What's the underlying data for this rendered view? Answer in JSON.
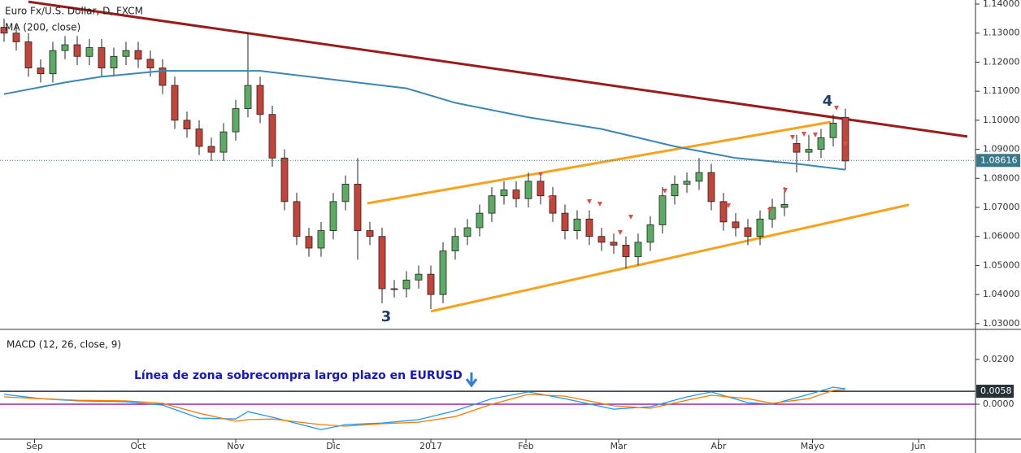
{
  "chart_data": [
    {
      "type": "candlestick",
      "title": "Euro Fx/U.S. Dollar, D, FXCM",
      "open": [
        1.132,
        1.13,
        1.127,
        1.118,
        1.116,
        1.124,
        1.126,
        1.122,
        1.125,
        1.118,
        1.122,
        1.124,
        1.121,
        1.118,
        1.112,
        1.1,
        1.097,
        1.091,
        1.089,
        1.096,
        1.104,
        1.112,
        1.102,
        1.087,
        1.072,
        1.06,
        1.056,
        1.062,
        1.072,
        1.078,
        1.062,
        1.06,
        1.042,
        1.042,
        1.045,
        1.047,
        1.04,
        1.055,
        1.06,
        1.063,
        1.068,
        1.074,
        1.076,
        1.073,
        1.079,
        1.074,
        1.068,
        1.062,
        1.066,
        1.06,
        1.058,
        1.057,
        1.053,
        1.058,
        1.064,
        1.074,
        1.078,
        1.079,
        1.082,
        1.072,
        1.065,
        1.063,
        1.06,
        1.066,
        1.07,
        1.092,
        1.089,
        1.09,
        1.094,
        1.101
      ],
      "high": [
        1.135,
        1.133,
        1.13,
        1.121,
        1.127,
        1.129,
        1.129,
        1.128,
        1.128,
        1.125,
        1.127,
        1.127,
        1.124,
        1.121,
        1.115,
        1.103,
        1.1,
        1.094,
        1.099,
        1.107,
        1.13,
        1.115,
        1.105,
        1.09,
        1.075,
        1.063,
        1.065,
        1.075,
        1.081,
        1.087,
        1.065,
        1.063,
        1.045,
        1.048,
        1.05,
        1.05,
        1.058,
        1.063,
        1.066,
        1.071,
        1.077,
        1.079,
        1.079,
        1.082,
        1.082,
        1.077,
        1.071,
        1.069,
        1.069,
        1.063,
        1.061,
        1.06,
        1.061,
        1.067,
        1.077,
        1.081,
        1.082,
        1.087,
        1.085,
        1.075,
        1.068,
        1.066,
        1.069,
        1.073,
        1.077,
        1.095,
        1.095,
        1.097,
        1.102,
        1.104
      ],
      "low": [
        1.127,
        1.124,
        1.115,
        1.113,
        1.113,
        1.121,
        1.119,
        1.119,
        1.115,
        1.115,
        1.119,
        1.118,
        1.115,
        1.109,
        1.097,
        1.094,
        1.088,
        1.086,
        1.086,
        1.093,
        1.101,
        1.099,
        1.084,
        1.069,
        1.057,
        1.053,
        1.053,
        1.059,
        1.069,
        1.052,
        1.057,
        1.037,
        1.039,
        1.039,
        1.042,
        1.035,
        1.037,
        1.052,
        1.057,
        1.06,
        1.065,
        1.071,
        1.07,
        1.07,
        1.071,
        1.065,
        1.059,
        1.059,
        1.057,
        1.055,
        1.054,
        1.049,
        1.05,
        1.055,
        1.061,
        1.071,
        1.075,
        1.076,
        1.069,
        1.062,
        1.06,
        1.057,
        1.057,
        1.063,
        1.067,
        1.082,
        1.086,
        1.087,
        1.091,
        1.083
      ],
      "close": [
        1.13,
        1.127,
        1.118,
        1.116,
        1.124,
        1.126,
        1.122,
        1.125,
        1.118,
        1.122,
        1.124,
        1.121,
        1.118,
        1.112,
        1.1,
        1.097,
        1.091,
        1.089,
        1.096,
        1.104,
        1.112,
        1.102,
        1.087,
        1.072,
        1.06,
        1.056,
        1.062,
        1.072,
        1.078,
        1.062,
        1.06,
        1.042,
        1.042,
        1.045,
        1.047,
        1.04,
        1.055,
        1.06,
        1.063,
        1.068,
        1.074,
        1.076,
        1.073,
        1.079,
        1.074,
        1.068,
        1.062,
        1.066,
        1.06,
        1.058,
        1.057,
        1.053,
        1.058,
        1.064,
        1.074,
        1.078,
        1.079,
        1.082,
        1.072,
        1.065,
        1.063,
        1.06,
        1.066,
        1.07,
        1.071,
        1.089,
        1.09,
        1.094,
        1.099,
        1.086
      ],
      "up_color": "#5bab62",
      "down_color": "#c4443a",
      "series": [
        {
          "name": "MA (200, close)",
          "color": "#3a87b5",
          "x": [
            0,
            5,
            8,
            13,
            16,
            21,
            27,
            33,
            37,
            43,
            49,
            55,
            60,
            65,
            69
          ],
          "values": [
            1.109,
            1.113,
            1.115,
            1.117,
            1.117,
            1.117,
            1.114,
            1.111,
            1.106,
            1.101,
            1.097,
            1.091,
            1.087,
            1.085,
            1.083
          ]
        }
      ],
      "trendlines": [
        {
          "color": "#9b1b1b",
          "x": [
            2,
            79
          ],
          "values": [
            1.1408,
            1.0944
          ]
        },
        {
          "color": "#f7a21b",
          "x": [
            29.8,
            67.8
          ],
          "values": [
            1.0714,
            1.0994
          ]
        },
        {
          "color": "#f7a21b",
          "x": [
            35,
            74.2
          ],
          "values": [
            1.0342,
            1.0709
          ]
        }
      ],
      "annotations": [
        "3",
        "4"
      ],
      "last_value": 1.08616,
      "xlim": [
        -0.333,
        79.667
      ],
      "ylim": [
        1.028,
        1.1414
      ],
      "yticks": [
        {
          "value": 1.14,
          "label": "1.14000"
        },
        {
          "value": 1.13,
          "label": "1.13000"
        },
        {
          "value": 1.12,
          "label": "1.12000"
        },
        {
          "value": 1.11,
          "label": "1.11000"
        },
        {
          "value": 1.1,
          "label": "1.10000"
        },
        {
          "value": 1.09,
          "label": "1.09000"
        },
        {
          "value": 1.08,
          "label": "1.08000"
        },
        {
          "value": 1.07,
          "label": "1.07000"
        },
        {
          "value": 1.06,
          "label": "1.06000"
        },
        {
          "value": 1.05,
          "label": "1.05000"
        },
        {
          "value": 1.04,
          "label": "1.04000"
        },
        {
          "value": 1.03,
          "label": "1.03000"
        }
      ]
    },
    {
      "type": "line",
      "title": "MACD (12, 26, close, 9)",
      "x": [
        0,
        3,
        6,
        10,
        13,
        16,
        19,
        20,
        22,
        26,
        28,
        31,
        34,
        37,
        40,
        43,
        46,
        50,
        53,
        56,
        58,
        61,
        63,
        66,
        68,
        69
      ],
      "series": [
        {
          "name": "MACD",
          "color": "#2196f3",
          "values": [
            0.0044,
            0.0025,
            0.0015,
            0.0011,
            -0.0004,
            -0.0062,
            -0.0066,
            -0.0033,
            -0.0058,
            -0.0113,
            -0.0091,
            -0.0084,
            -0.0069,
            -0.0029,
            0.0025,
            0.0055,
            0.0025,
            -0.0022,
            -0.0011,
            0.0033,
            0.0055,
            0.0007,
            0.0,
            0.0044,
            0.0076,
            0.0069
          ]
        },
        {
          "name": "Signal",
          "color": "#f57c00",
          "values": [
            0.0033,
            0.0025,
            0.0018,
            0.0015,
            0.0004,
            -0.004,
            -0.0076,
            -0.0069,
            -0.0066,
            -0.0091,
            -0.0098,
            -0.0087,
            -0.008,
            -0.0055,
            0.0,
            0.0044,
            0.0036,
            -0.0007,
            -0.0018,
            0.0018,
            0.004,
            0.0025,
            0.0004,
            0.0025,
            0.0062,
            0.0066
          ]
        }
      ],
      "reference_lines": [
        {
          "value": 0,
          "color": "#9c27b0"
        },
        {
          "value": 0.0058,
          "color": "#263238"
        }
      ],
      "annotations": [
        "Línea de zona sobrecompra largo plazo en EURUSD"
      ],
      "xlim": [
        -0.333,
        79.667
      ],
      "ylim": [
        -0.0156,
        0.0327
      ],
      "yticks": [
        {
          "value": 0.02,
          "label": "0.0200"
        },
        {
          "value": 0,
          "label": "0.0000"
        }
      ],
      "xticks": [
        {
          "value": 2.5,
          "label": "Sep"
        },
        {
          "value": 11,
          "label": "Oct"
        },
        {
          "value": 19,
          "label": "Nov"
        },
        {
          "value": 27,
          "label": "Dic"
        },
        {
          "value": 35,
          "label": "2017"
        },
        {
          "value": 42.8,
          "label": "Feb"
        },
        {
          "value": 50.4,
          "label": "Mar"
        },
        {
          "value": 58.6,
          "label": "Abr"
        },
        {
          "value": 66.3,
          "label": "Mayo"
        },
        {
          "value": 75,
          "label": "Jun"
        }
      ]
    }
  ]
}
